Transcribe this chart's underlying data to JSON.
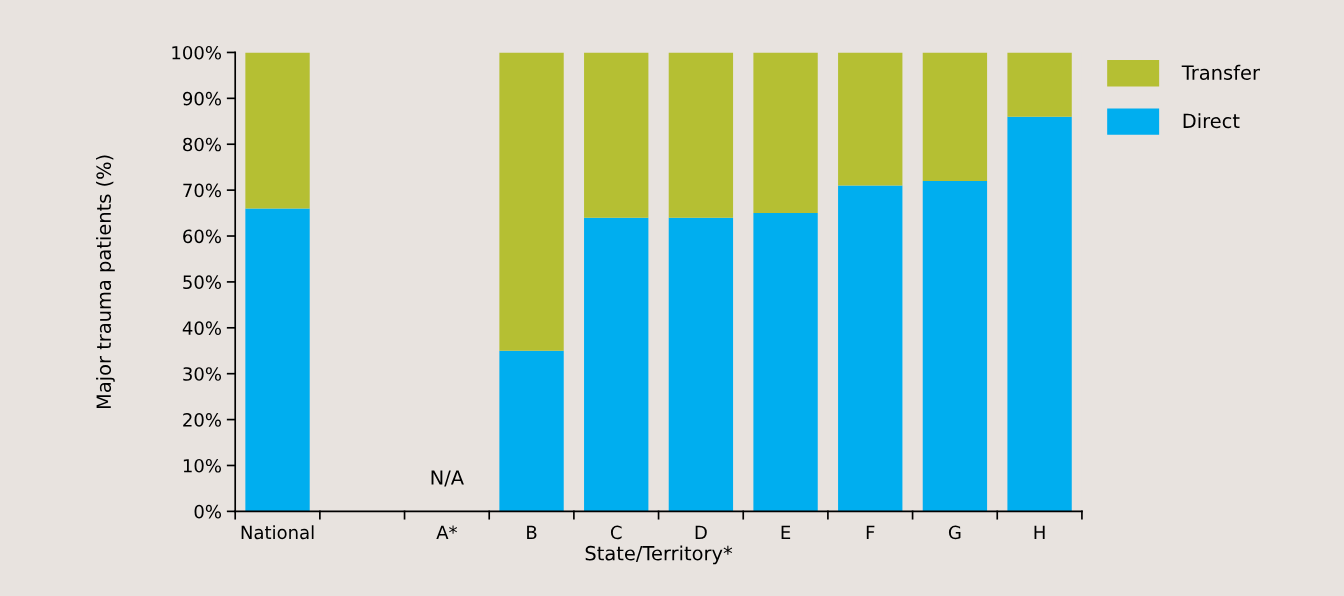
{
  "chart_data": {
    "type": "bar",
    "stacked": true,
    "xlabel": "State/Territory*",
    "ylabel": "Major trauma patients (%)",
    "categories": [
      "National",
      null,
      "A*",
      "B",
      "C",
      "D",
      "E",
      "F",
      "G",
      "H"
    ],
    "series": [
      {
        "name": "Direct",
        "color": "#00aeef",
        "values": [
          66,
          null,
          null,
          35,
          64,
          64,
          65,
          71,
          72,
          86
        ]
      },
      {
        "name": "Transfer",
        "color": "#b5bf33",
        "values": [
          34,
          null,
          null,
          65,
          36,
          36,
          35,
          29,
          28,
          14
        ]
      }
    ],
    "ylim": [
      0,
      100
    ],
    "yticks": [
      {
        "value": 0,
        "label": "0%"
      },
      {
        "value": 10,
        "label": "10%"
      },
      {
        "value": 20,
        "label": "20%"
      },
      {
        "value": 30,
        "label": "30%"
      },
      {
        "value": 40,
        "label": "40%"
      },
      {
        "value": 50,
        "label": "50%"
      },
      {
        "value": 60,
        "label": "60%"
      },
      {
        "value": 70,
        "label": "70%"
      },
      {
        "value": 80,
        "label": "80%"
      },
      {
        "value": 90,
        "label": "90%"
      },
      {
        "value": 100,
        "label": "100%"
      }
    ],
    "annotations": [
      "N/A"
    ],
    "grid": false,
    "legend": "top right"
  }
}
